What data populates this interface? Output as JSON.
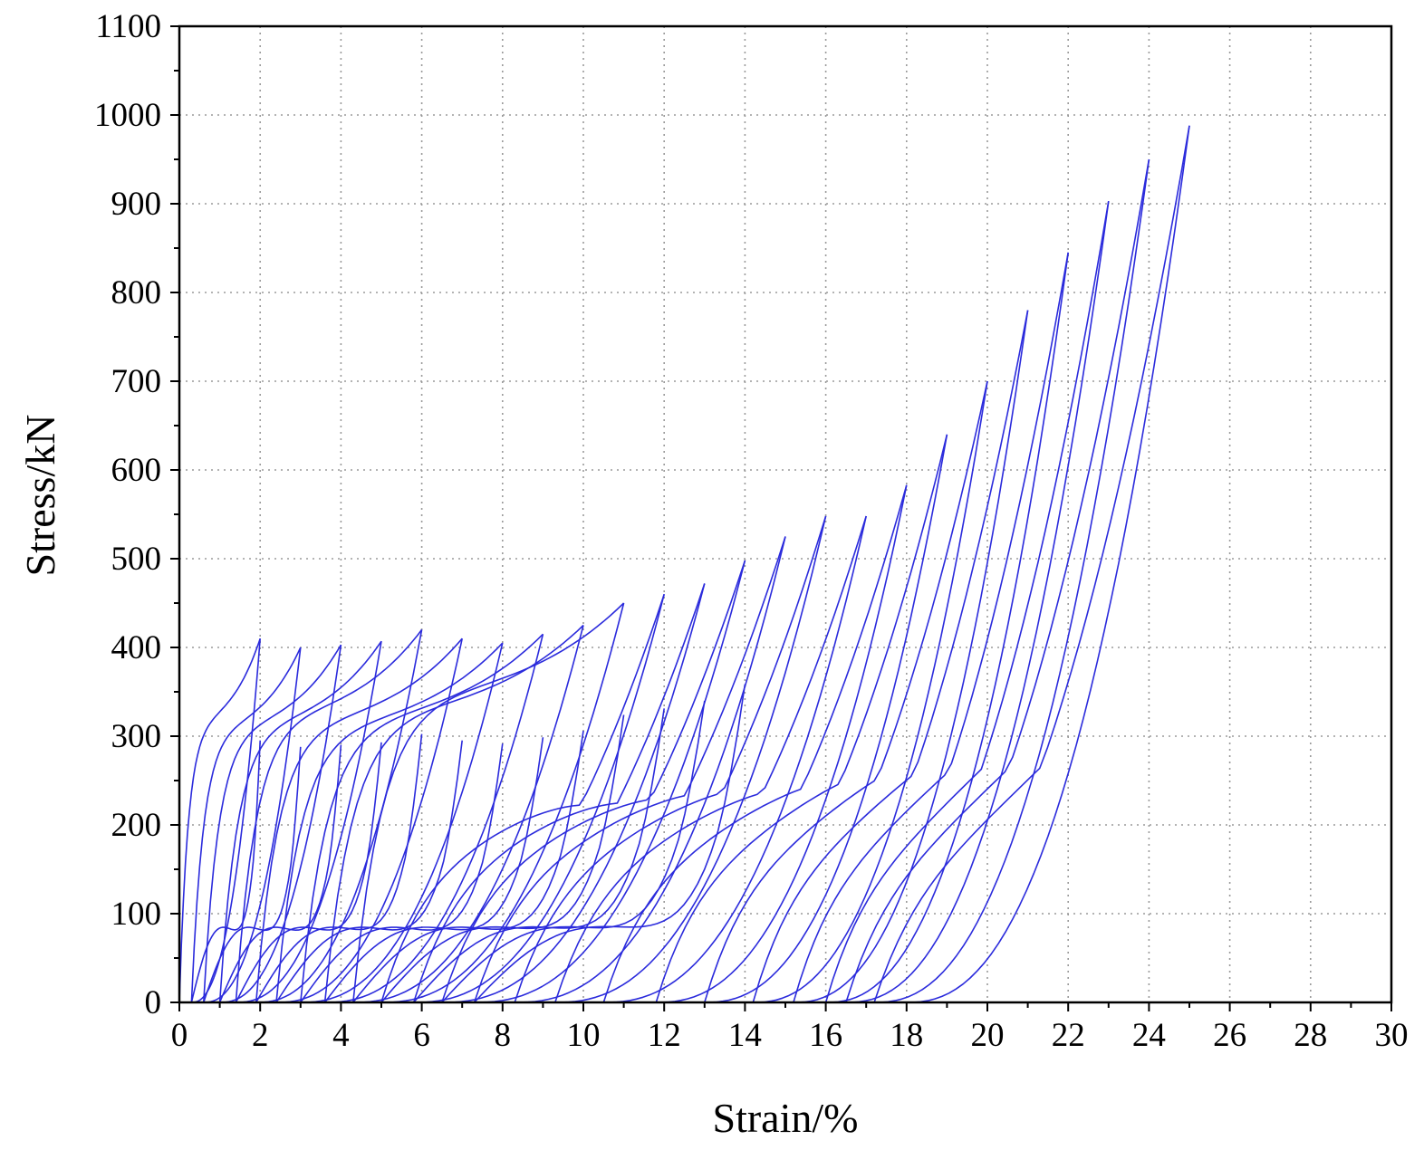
{
  "chart_data": {
    "type": "line",
    "title": "",
    "xlabel": "Strain/%",
    "ylabel": "Stress/kN",
    "xlim": [
      0,
      30
    ],
    "ylim": [
      0,
      1100
    ],
    "x_ticks": [
      "0",
      "2",
      "4",
      "6",
      "8",
      "10",
      "12",
      "14",
      "16",
      "18",
      "20",
      "22",
      "24",
      "26",
      "28",
      "30"
    ],
    "y_ticks": [
      "0",
      "100",
      "200",
      "300",
      "400",
      "500",
      "600",
      "700",
      "800",
      "900",
      "1000",
      "1100"
    ],
    "grid": true,
    "legend": "none",
    "line_color": "#2b2bdc",
    "description_of_series": "Cyclic loading-unloading loops; each cycle: loading branch to peak, then unloading branch",
    "cycles": [
      {
        "peak_strain": 2,
        "peak_stress": 410,
        "residual_strain": 0.3
      },
      {
        "peak_strain": 3,
        "peak_stress": 400,
        "residual_strain": 0.6
      },
      {
        "peak_strain": 4,
        "peak_stress": 403,
        "residual_strain": 1.0
      },
      {
        "peak_strain": 5,
        "peak_stress": 407,
        "residual_strain": 1.4
      },
      {
        "peak_strain": 6,
        "peak_stress": 420,
        "residual_strain": 1.9
      },
      {
        "peak_strain": 7,
        "peak_stress": 410,
        "residual_strain": 2.4
      },
      {
        "peak_strain": 8,
        "peak_stress": 405,
        "residual_strain": 3.0
      },
      {
        "peak_strain": 9,
        "peak_stress": 415,
        "residual_strain": 3.6
      },
      {
        "peak_strain": 10,
        "peak_stress": 425,
        "residual_strain": 4.3
      },
      {
        "peak_strain": 11,
        "peak_stress": 450,
        "residual_strain": 5.0
      },
      {
        "peak_strain": 12,
        "peak_stress": 460,
        "residual_strain": 5.8
      },
      {
        "peak_strain": 13,
        "peak_stress": 472,
        "residual_strain": 6.5
      },
      {
        "peak_strain": 14,
        "peak_stress": 498,
        "residual_strain": 7.3
      },
      {
        "peak_strain": 15,
        "peak_stress": 525,
        "residual_strain": 8.3
      },
      {
        "peak_strain": 16,
        "peak_stress": 548,
        "residual_strain": 9.3
      },
      {
        "peak_strain": 17,
        "peak_stress": 548,
        "residual_strain": 10.5
      },
      {
        "peak_strain": 18,
        "peak_stress": 583,
        "residual_strain": 11.8
      },
      {
        "peak_strain": 19,
        "peak_stress": 640,
        "residual_strain": 13.0
      },
      {
        "peak_strain": 20,
        "peak_stress": 700,
        "residual_strain": 14.2
      },
      {
        "peak_strain": 21,
        "peak_stress": 780,
        "residual_strain": 15.2
      },
      {
        "peak_strain": 22,
        "peak_stress": 845,
        "residual_strain": 16.0
      },
      {
        "peak_strain": 23,
        "peak_stress": 903,
        "residual_strain": 16.5
      },
      {
        "peak_strain": 24,
        "peak_stress": 950,
        "residual_strain": 17.2
      },
      {
        "peak_strain": 25,
        "peak_stress": 988,
        "residual_strain": 18.0
      }
    ]
  }
}
